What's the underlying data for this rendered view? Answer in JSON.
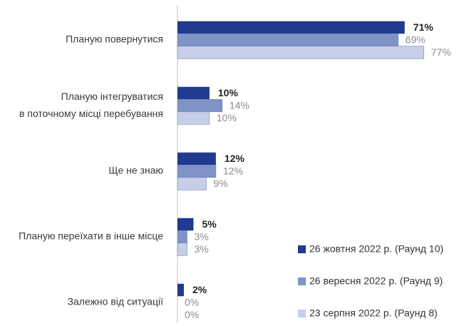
{
  "chart_data": {
    "type": "bar",
    "orientation": "horizontal",
    "categories": [
      "Планую повернутися",
      "Планую інтегруватися\nв поточному місці перебування",
      "Ще не знаю",
      "Планую переїхати в інше місце",
      "Залежно від ситуації"
    ],
    "series": [
      {
        "name": "26 жовтня 2022 р. (Раунд 10)",
        "color": "#1f3a8f",
        "values": [
          71,
          10,
          12,
          5,
          2
        ],
        "value_labels": [
          "71%",
          "10%",
          "12%",
          "5%",
          "2%"
        ]
      },
      {
        "name": "26 вересня 2022 р. (Раунд 9)",
        "color": "#7f93c6",
        "values": [
          69,
          14,
          12,
          3,
          0
        ],
        "value_labels": [
          "69%",
          "14%",
          "12%",
          "3%",
          "0%"
        ]
      },
      {
        "name": "23 серпня 2022 р. (Раунд 8)",
        "color": "#c6cee8",
        "values": [
          77,
          10,
          9,
          3,
          0
        ],
        "value_labels": [
          "77%",
          "10%",
          "9%",
          "3%",
          "0%"
        ]
      }
    ]
  }
}
